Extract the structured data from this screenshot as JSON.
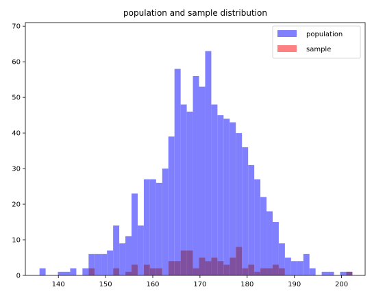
{
  "chart_data": {
    "type": "bar",
    "title": "population and sample distribution",
    "xlabel": "",
    "ylabel": "",
    "xlim": [
      133,
      205
    ],
    "ylim": [
      0,
      71
    ],
    "grid": false,
    "legend_position": "top-right",
    "xticks": [
      140,
      150,
      160,
      170,
      180,
      190,
      200
    ],
    "yticks": [
      0,
      10,
      20,
      30,
      40,
      50,
      60,
      70
    ],
    "series": [
      {
        "name": "population",
        "color": "#8080ff",
        "bins": [
          [
            136.0,
            137.3,
            2
          ],
          [
            137.3,
            138.6,
            0
          ],
          [
            138.6,
            139.9,
            0
          ],
          [
            139.9,
            141.2,
            1
          ],
          [
            141.2,
            142.5,
            1
          ],
          [
            142.5,
            143.8,
            2
          ],
          [
            143.8,
            145.1,
            0
          ],
          [
            145.1,
            146.4,
            2
          ],
          [
            146.4,
            147.7,
            6
          ],
          [
            147.7,
            149.0,
            6
          ],
          [
            149.0,
            150.3,
            6
          ],
          [
            150.3,
            151.6,
            7
          ],
          [
            151.6,
            152.9,
            14
          ],
          [
            152.9,
            154.2,
            9
          ],
          [
            154.2,
            155.5,
            11
          ],
          [
            155.5,
            156.8,
            23
          ],
          [
            156.8,
            158.1,
            14
          ],
          [
            158.1,
            159.4,
            27
          ],
          [
            159.4,
            160.7,
            27
          ],
          [
            160.7,
            162.0,
            26
          ],
          [
            162.0,
            163.3,
            30
          ],
          [
            163.3,
            164.6,
            39
          ],
          [
            164.6,
            165.9,
            58
          ],
          [
            165.9,
            167.2,
            48
          ],
          [
            167.2,
            168.5,
            46
          ],
          [
            168.5,
            169.8,
            56
          ],
          [
            169.8,
            171.1,
            53
          ],
          [
            171.1,
            172.4,
            63
          ],
          [
            172.4,
            173.7,
            48
          ],
          [
            173.7,
            175.0,
            45
          ],
          [
            175.0,
            176.3,
            44
          ],
          [
            176.3,
            177.6,
            43
          ],
          [
            177.6,
            178.9,
            40
          ],
          [
            178.9,
            180.2,
            36
          ],
          [
            180.2,
            181.5,
            31
          ],
          [
            181.5,
            182.8,
            27
          ],
          [
            182.8,
            184.1,
            22
          ],
          [
            184.1,
            185.4,
            18
          ],
          [
            185.4,
            186.7,
            15
          ],
          [
            186.7,
            188.0,
            9
          ],
          [
            188.0,
            189.3,
            5
          ],
          [
            189.3,
            190.6,
            4
          ],
          [
            190.6,
            191.9,
            4
          ],
          [
            191.9,
            193.2,
            6
          ],
          [
            193.2,
            194.5,
            2
          ],
          [
            194.5,
            195.8,
            0
          ],
          [
            195.8,
            197.1,
            1
          ],
          [
            197.1,
            198.4,
            1
          ],
          [
            198.4,
            199.7,
            0
          ],
          [
            199.7,
            201.0,
            1
          ],
          [
            201.0,
            202.3,
            1
          ]
        ]
      },
      {
        "name": "sample",
        "color": "#ff8080",
        "bins": [
          [
            146.4,
            147.7,
            2
          ],
          [
            147.7,
            149.0,
            0
          ],
          [
            149.0,
            150.3,
            0
          ],
          [
            150.3,
            151.6,
            0
          ],
          [
            151.6,
            152.9,
            2
          ],
          [
            152.9,
            154.2,
            0
          ],
          [
            154.2,
            155.5,
            1
          ],
          [
            155.5,
            156.8,
            3
          ],
          [
            156.8,
            158.1,
            0
          ],
          [
            158.1,
            159.4,
            3
          ],
          [
            159.4,
            160.7,
            2
          ],
          [
            160.7,
            162.0,
            2
          ],
          [
            162.0,
            163.3,
            0
          ],
          [
            163.3,
            164.6,
            4
          ],
          [
            164.6,
            165.9,
            4
          ],
          [
            165.9,
            167.2,
            7
          ],
          [
            167.2,
            168.5,
            7
          ],
          [
            168.5,
            169.8,
            2
          ],
          [
            169.8,
            171.1,
            5
          ],
          [
            171.1,
            172.4,
            4
          ],
          [
            172.4,
            173.7,
            5
          ],
          [
            173.7,
            175.0,
            4
          ],
          [
            175.0,
            176.3,
            3
          ],
          [
            176.3,
            177.6,
            5
          ],
          [
            177.6,
            178.9,
            8
          ],
          [
            178.9,
            180.2,
            2
          ],
          [
            180.2,
            181.5,
            3
          ],
          [
            181.5,
            182.8,
            1
          ],
          [
            182.8,
            184.1,
            2
          ],
          [
            184.1,
            185.4,
            2
          ],
          [
            185.4,
            186.7,
            3
          ],
          [
            186.7,
            188.0,
            2
          ],
          [
            188.0,
            189.3,
            0
          ],
          [
            189.3,
            190.6,
            0
          ],
          [
            190.6,
            191.9,
            0
          ],
          [
            191.9,
            193.2,
            0
          ],
          [
            193.2,
            194.5,
            0
          ],
          [
            194.5,
            195.8,
            0
          ],
          [
            195.8,
            197.1,
            0
          ],
          [
            197.1,
            198.4,
            0
          ],
          [
            198.4,
            199.7,
            0
          ],
          [
            199.7,
            201.0,
            0
          ],
          [
            201.0,
            202.3,
            1
          ]
        ]
      }
    ]
  }
}
